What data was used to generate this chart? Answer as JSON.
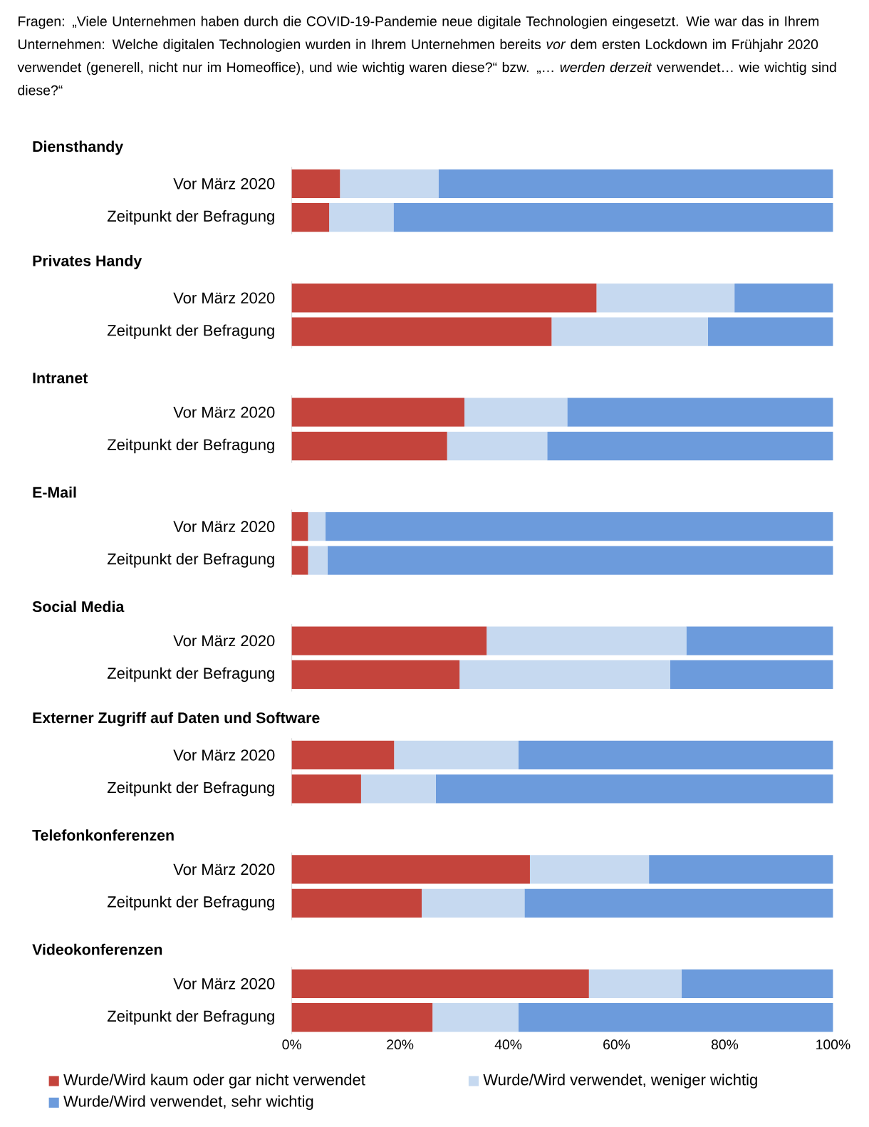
{
  "chart_data": [
    {
      "type": "bar",
      "orientation": "horizontal",
      "stacked": true,
      "title": "Diensthandy",
      "annotations": [
        "Fragen: „Viele Unternehmen haben durch die COVID-19-Pandemie neue digitale Technologien eingesetzt. Wie war das in Ihrem Unternehmen: Welche digitalen Technologien wurden in Ihrem Unternehmen bereits *vor* dem ersten Lockdown im Frühjahr 2020 verwendet (generell, nicht nur im Homeoffice), und wie wichtig waren diese?“ bzw. „… *werden derzeit* verwendet… wie wichtig sind diese?“"
      ],
      "categories": [
        "Vor März 2020",
        "Zeitpunkt der Befragung"
      ],
      "xlim": [
        0,
        100
      ],
      "tick_labels": "y",
      "series": [
        {
          "color": "#c4443c",
          "values": [
            8.9,
            6.9
          ]
        },
        {
          "color": "#c6d9f0",
          "values": [
            18.2,
            11.9
          ]
        },
        {
          "color": "#6c9bdc",
          "values": [
            72.9,
            81.2
          ]
        }
      ]
    },
    {
      "type": "bar",
      "orientation": "horizontal",
      "stacked": true,
      "title": "Privates Handy",
      "categories": [
        "Vor März 2020",
        "Zeitpunkt der Befragung"
      ],
      "xlim": [
        0,
        100
      ],
      "tick_labels": "y",
      "series": [
        {
          "color": "#c4443c",
          "values": [
            56.3,
            48.0
          ]
        },
        {
          "color": "#c6d9f0",
          "values": [
            25.5,
            28.9
          ]
        },
        {
          "color": "#6c9bdc",
          "values": [
            18.2,
            23.1
          ]
        }
      ]
    },
    {
      "type": "bar",
      "orientation": "horizontal",
      "stacked": true,
      "title": "Intranet",
      "categories": [
        "Vor März 2020",
        "Zeitpunkt der Befragung"
      ],
      "xlim": [
        0,
        100
      ],
      "tick_labels": "y",
      "series": [
        {
          "color": "#c4443c",
          "values": [
            31.9,
            28.7
          ]
        },
        {
          "color": "#c6d9f0",
          "values": [
            19.0,
            18.5
          ]
        },
        {
          "color": "#6c9bdc",
          "values": [
            49.1,
            52.8
          ]
        }
      ]
    },
    {
      "type": "bar",
      "orientation": "horizontal",
      "stacked": true,
      "title": "E-Mail",
      "categories": [
        "Vor März 2020",
        "Zeitpunkt der Befragung"
      ],
      "xlim": [
        0,
        100
      ],
      "tick_labels": "y",
      "series": [
        {
          "color": "#c4443c",
          "values": [
            3.0,
            3.0
          ]
        },
        {
          "color": "#c6d9f0",
          "values": [
            3.2,
            3.6
          ]
        },
        {
          "color": "#6c9bdc",
          "values": [
            93.8,
            93.4
          ]
        }
      ]
    },
    {
      "type": "bar",
      "orientation": "horizontal",
      "stacked": true,
      "title": "Social Media",
      "categories": [
        "Vor März 2020",
        "Zeitpunkt der Befragung"
      ],
      "xlim": [
        0,
        100
      ],
      "tick_labels": "y",
      "series": [
        {
          "color": "#c4443c",
          "values": [
            36.0,
            31.0
          ]
        },
        {
          "color": "#c6d9f0",
          "values": [
            36.9,
            38.9
          ]
        },
        {
          "color": "#6c9bdc",
          "values": [
            27.1,
            30.1
          ]
        }
      ]
    },
    {
      "type": "bar",
      "orientation": "horizontal",
      "stacked": true,
      "title": "Externer Zugriff auf Daten und Software",
      "categories": [
        "Vor März 2020",
        "Zeitpunkt der Befragung"
      ],
      "xlim": [
        0,
        100
      ],
      "tick_labels": "y",
      "series": [
        {
          "color": "#c4443c",
          "values": [
            18.9,
            12.8
          ]
        },
        {
          "color": "#c6d9f0",
          "values": [
            23.0,
            13.8
          ]
        },
        {
          "color": "#6c9bdc",
          "values": [
            58.1,
            73.4
          ]
        }
      ]
    },
    {
      "type": "bar",
      "orientation": "horizontal",
      "stacked": true,
      "title": "Telefonkonferenzen",
      "categories": [
        "Vor März 2020",
        "Zeitpunkt der Befragung"
      ],
      "xlim": [
        0,
        100
      ],
      "tick_labels": "y",
      "series": [
        {
          "color": "#c4443c",
          "values": [
            44.0,
            24.0
          ]
        },
        {
          "color": "#c6d9f0",
          "values": [
            22.0,
            19.0
          ]
        },
        {
          "color": "#6c9bdc",
          "values": [
            34.0,
            57.0
          ]
        }
      ]
    },
    {
      "type": "bar",
      "orientation": "horizontal",
      "stacked": true,
      "title": "Videokonferenzen",
      "categories": [
        "Vor März 2020",
        "Zeitpunkt der Befragung"
      ],
      "xlim": [
        0,
        100
      ],
      "xticks": [
        {
          "value": 0,
          "label": "0%"
        },
        {
          "value": 20,
          "label": "20%"
        },
        {
          "value": 40,
          "label": "40%"
        },
        {
          "value": 60,
          "label": "60%"
        },
        {
          "value": 80,
          "label": "80%"
        },
        {
          "value": 100,
          "label": "100%"
        }
      ],
      "legend": "bottom",
      "series": [
        {
          "name": "Wurde/Wird kaum oder gar nicht verwendet",
          "color": "#c4443c",
          "values": [
            54.9,
            26.0
          ]
        },
        {
          "name": "Wurde/Wird verwendet, weniger wichtig",
          "color": "#c6d9f0",
          "values": [
            17.1,
            15.9
          ]
        },
        {
          "name": "Wurde/Wird verwendet, sehr wichtig",
          "color": "#6c9bdc",
          "values": [
            28.0,
            58.1
          ]
        }
      ]
    }
  ]
}
